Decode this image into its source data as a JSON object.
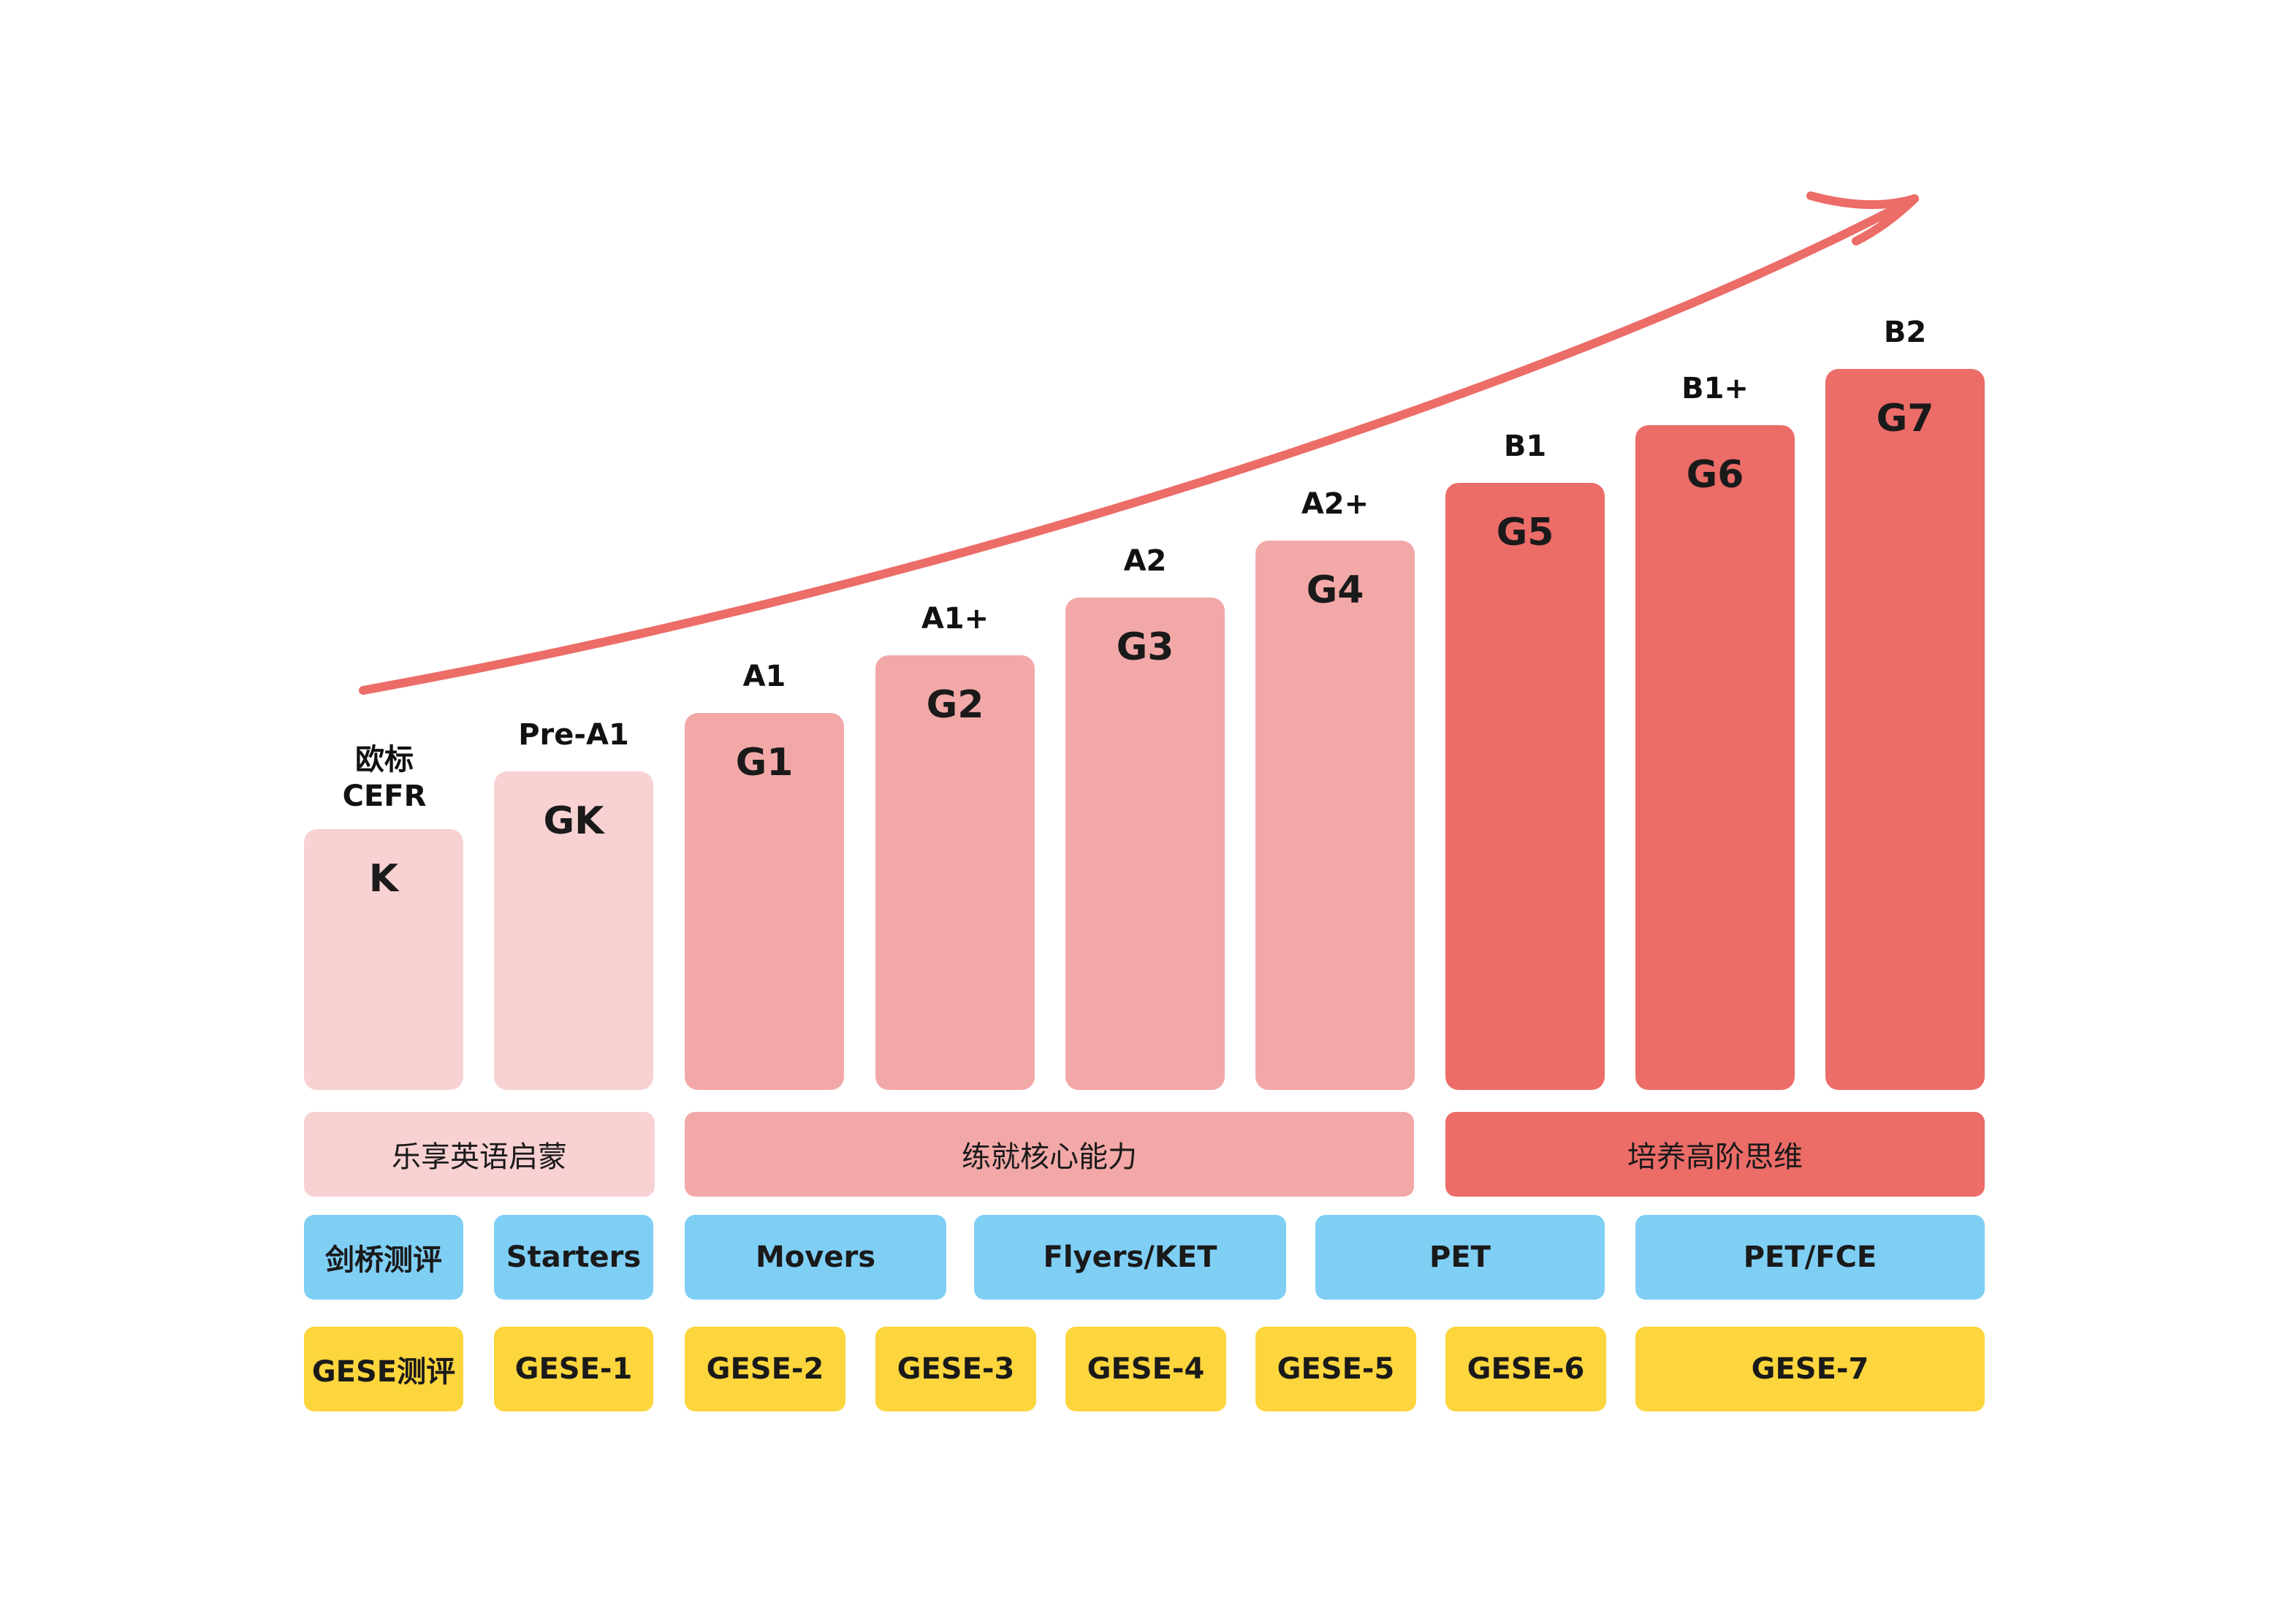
{
  "colors": {
    "light_pink": "#F8D1D3",
    "mid_pink": "#F3A8A8",
    "deep_red": "#EC6C68",
    "blue": "#7FCFF5",
    "yellow": "#FDD53D",
    "arrow": "#EC6C68"
  },
  "header_label": [
    "欧标",
    "CEFR"
  ],
  "bars": [
    {
      "cefr": "",
      "grade": "K",
      "tone": "light_pink"
    },
    {
      "cefr": "Pre-A1",
      "grade": "GK",
      "tone": "light_pink"
    },
    {
      "cefr": "A1",
      "grade": "G1",
      "tone": "mid_pink"
    },
    {
      "cefr": "A1+",
      "grade": "G2",
      "tone": "mid_pink"
    },
    {
      "cefr": "A2",
      "grade": "G3",
      "tone": "mid_pink"
    },
    {
      "cefr": "A2+",
      "grade": "G4",
      "tone": "mid_pink"
    },
    {
      "cefr": "B1",
      "grade": "G5",
      "tone": "deep_red"
    },
    {
      "cefr": "B1+",
      "grade": "G6",
      "tone": "deep_red"
    },
    {
      "cefr": "B2",
      "grade": "G7",
      "tone": "deep_red"
    }
  ],
  "stages": [
    {
      "label": "乐享英语启蒙",
      "tone": "light_pink"
    },
    {
      "label": "练就核心能力",
      "tone": "mid_pink"
    },
    {
      "label": "培养高阶思维",
      "tone": "deep_red"
    }
  ],
  "cambridge": [
    {
      "label": "剑桥测评"
    },
    {
      "label": "Starters"
    },
    {
      "label": "Movers"
    },
    {
      "label": "Flyers/KET"
    },
    {
      "label": "PET"
    },
    {
      "label": "PET/FCE"
    }
  ],
  "gese": [
    {
      "label": "GESE测评"
    },
    {
      "label": "GESE-1"
    },
    {
      "label": "GESE-2"
    },
    {
      "label": "GESE-3"
    },
    {
      "label": "GESE-4"
    },
    {
      "label": "GESE-5"
    },
    {
      "label": "GESE-6"
    },
    {
      "label": "GESE-7"
    }
  ]
}
